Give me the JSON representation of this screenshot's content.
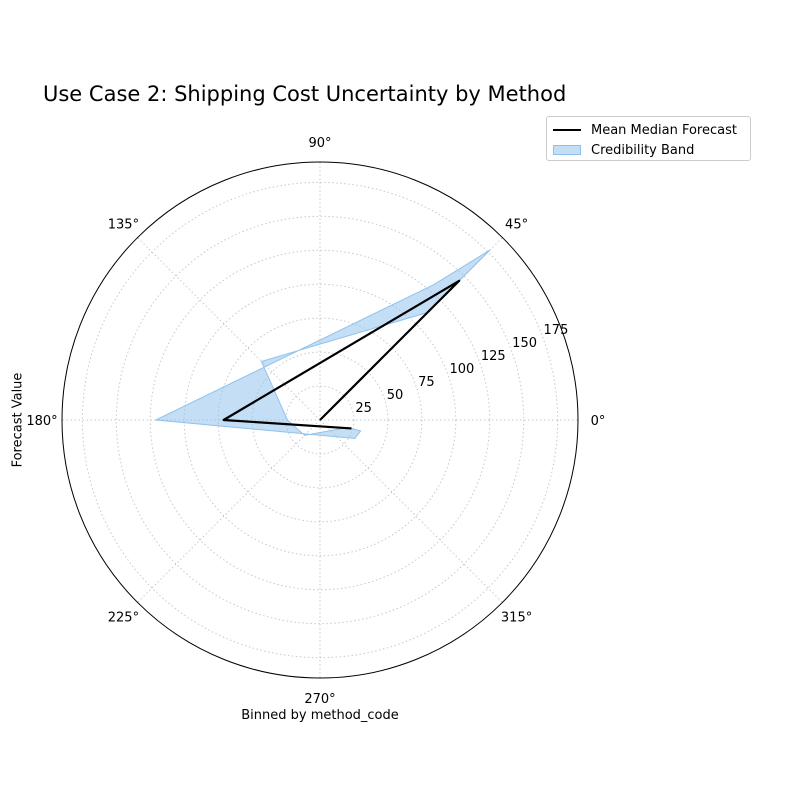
{
  "chart_data": {
    "type": "polar-line-band",
    "title": "Use Case 2: Shipping Cost Uncertainty by Method",
    "xlabel": "Binned by method_code",
    "ylabel": "Forecast Value",
    "theta_ticks": [
      "0°",
      "45°",
      "90°",
      "135°",
      "180°",
      "225°",
      "270°",
      "315°"
    ],
    "theta_tick_degrees": [
      0,
      45,
      90,
      135,
      180,
      225,
      270,
      315
    ],
    "r_ticks": [
      25,
      50,
      75,
      100,
      125,
      150,
      175
    ],
    "r_max": 190,
    "grid": true,
    "legend_position": "upper-right-outside",
    "theta_degrees": [
      0,
      45,
      180,
      345
    ],
    "series": [
      {
        "name": "Mean Median Forecast",
        "r": [
          0,
          145,
          71,
          24
        ],
        "color": "#000000"
      }
    ],
    "band": {
      "name": "Credibility Band",
      "upper": [
        0,
        177,
        121,
        31
      ],
      "lower": [
        0,
        112,
        24,
        21
      ],
      "color": "#87beeb"
    },
    "band_outline_extra": [
      {
        "theta": 50,
        "r": 130
      },
      {
        "theta": 135,
        "r": 61
      },
      {
        "theta": 225,
        "r": 16
      },
      {
        "theta": 332,
        "r": 29
      }
    ]
  }
}
